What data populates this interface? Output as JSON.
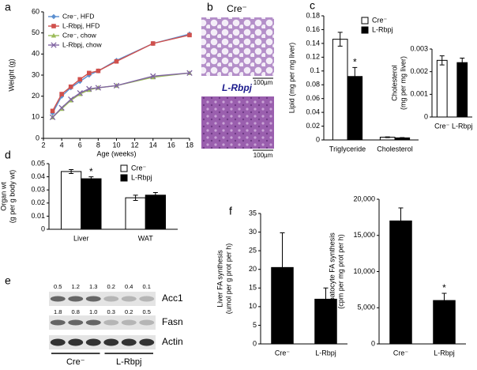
{
  "chart_data": [
    {
      "type": "line",
      "panel_label": "a",
      "xlabel": "Age (weeks)",
      "ylabel": [
        "Weight (g)"
      ],
      "xlim": [
        2,
        18
      ],
      "xticks": [
        2,
        4,
        6,
        8,
        10,
        12,
        14,
        16,
        18
      ],
      "ylim": [
        0,
        60
      ],
      "yticks": [
        0,
        10,
        20,
        30,
        40,
        50,
        60
      ],
      "legend": "top-left",
      "series": [
        {
          "name": "Cre⁻, HFD",
          "color": "#5b8fd0",
          "marker": "diamond",
          "x": [
            3,
            4,
            5,
            6,
            7,
            8,
            10,
            14,
            18
          ],
          "values": [
            12,
            20,
            24,
            27,
            30,
            32,
            37,
            45,
            49.5
          ]
        },
        {
          "name": "L-Rbpj, HFD",
          "color": "#d0504c",
          "marker": "square",
          "x": [
            3,
            4,
            5,
            6,
            7,
            8,
            10,
            14,
            18
          ],
          "values": [
            13,
            21,
            24.5,
            28,
            31,
            32,
            36.5,
            45,
            49
          ]
        },
        {
          "name": "Cre⁻, chow",
          "color": "#9bbb59",
          "marker": "triangle",
          "x": [
            3,
            4,
            5,
            6,
            7,
            8,
            10,
            14,
            18
          ],
          "values": [
            10,
            14,
            18,
            21,
            23,
            24,
            25,
            29,
            31
          ]
        },
        {
          "name": "L-Rbpj, chow",
          "color": "#8064a2",
          "marker": "x",
          "x": [
            3,
            4,
            5,
            6,
            7,
            8,
            10,
            14,
            18
          ],
          "values": [
            10,
            14.5,
            18.5,
            21.5,
            23.5,
            24,
            25,
            29.5,
            31
          ]
        }
      ]
    },
    {
      "type": "bar",
      "panel_label": "c",
      "ylabel": [
        "Lipid (mg per mg liver)"
      ],
      "categories": [
        "Triglyceride",
        "Cholesterol"
      ],
      "ylim": [
        0,
        0.18
      ],
      "yticks": [
        0,
        0.02,
        0.04,
        0.06,
        0.08,
        0.1,
        0.12,
        0.14,
        0.16,
        0.18
      ],
      "legend": "top-right",
      "series": [
        {
          "name": "Cre⁻",
          "color": "#ffffff",
          "values": [
            0.146,
            0.004
          ],
          "errors": [
            0.01,
            0.0005
          ]
        },
        {
          "name": "L-Rbpj",
          "color": "#000000",
          "values": [
            0.092,
            0.003
          ],
          "errors": [
            0.013,
            0.0005
          ]
        }
      ],
      "annotations": [
        {
          "text": "*",
          "category": "Triglyceride",
          "series": "L-Rbpj"
        }
      ]
    },
    {
      "type": "bar",
      "ylabel": [
        "Cholesterol",
        "(mg per mg liver)"
      ],
      "categories": [
        "Cre⁻",
        "L-Rbpj"
      ],
      "ylim": [
        0,
        0.003
      ],
      "yticks": [
        0,
        0.001,
        0.002,
        0.003
      ],
      "values": [
        0.0025,
        0.0024
      ],
      "errors": [
        0.0002,
        0.0002
      ],
      "colors": [
        "#ffffff",
        "#000000"
      ]
    },
    {
      "type": "bar",
      "panel_label": "d",
      "ylabel": [
        "Organ wt",
        "(g per g body wt)"
      ],
      "categories": [
        "Liver",
        "WAT"
      ],
      "ylim": [
        0,
        0.05
      ],
      "yticks": [
        0,
        0.01,
        0.02,
        0.03,
        0.04,
        0.05
      ],
      "legend": "top-right",
      "series": [
        {
          "name": "Cre⁻",
          "color": "#ffffff",
          "values": [
            0.044,
            0.024
          ],
          "errors": [
            0.0015,
            0.002
          ]
        },
        {
          "name": "L-Rbpj",
          "color": "#000000",
          "values": [
            0.0385,
            0.026
          ],
          "errors": [
            0.0015,
            0.002
          ]
        }
      ],
      "annotations": [
        {
          "text": "*",
          "category": "Liver",
          "series": "L-Rbpj"
        }
      ]
    },
    {
      "type": "bar",
      "panel_label": "f",
      "ylabel": [
        "Liver FA synthesis",
        "(umol per g prot per h)"
      ],
      "categories": [
        "Cre⁻",
        "L-Rbpj"
      ],
      "ylim": [
        0,
        35
      ],
      "yticks": [
        0,
        5,
        10,
        15,
        20,
        25,
        30,
        35
      ],
      "values": [
        20.5,
        12
      ],
      "errors": [
        9.3,
        3
      ],
      "color": "#000000"
    },
    {
      "type": "bar",
      "ylabel": [
        "Hepatocyte FA synthesis",
        "(cpm per mg prot per h)"
      ],
      "categories": [
        "Cre⁻",
        "L-Rbpj"
      ],
      "ylim": [
        0,
        20000
      ],
      "yticks": [
        0,
        {
          "value": 5000,
          "label": "5,000"
        },
        {
          "value": 10000,
          "label": "10,000"
        },
        {
          "value": 15000,
          "label": "15,000"
        },
        {
          "value": 20000,
          "label": "20,000"
        }
      ],
      "values": [
        17000,
        6000
      ],
      "errors": [
        1800,
        1000
      ],
      "color": "#000000",
      "annotations": [
        {
          "text": "*",
          "category": "L-Rbpj"
        }
      ]
    }
  ],
  "images": {
    "panel_label": "b",
    "top_label": "Cre⁻",
    "bottom_label": "L-Rbpj",
    "scale_bars": [
      "100µm",
      "100µm"
    ]
  },
  "blot": {
    "panel_label": "e",
    "groups": [
      "Cre⁻",
      "L-Rbpj"
    ],
    "rows": [
      {
        "name": "Acc1",
        "ratios": [
          "0.5",
          "1.2",
          "1.3",
          "0.2",
          "0.4",
          "0.1"
        ]
      },
      {
        "name": "Fasn",
        "ratios": [
          "1.8",
          "0.8",
          "1.0",
          "0.3",
          "0.2",
          "0.5"
        ]
      },
      {
        "name": "Actin"
      }
    ]
  }
}
